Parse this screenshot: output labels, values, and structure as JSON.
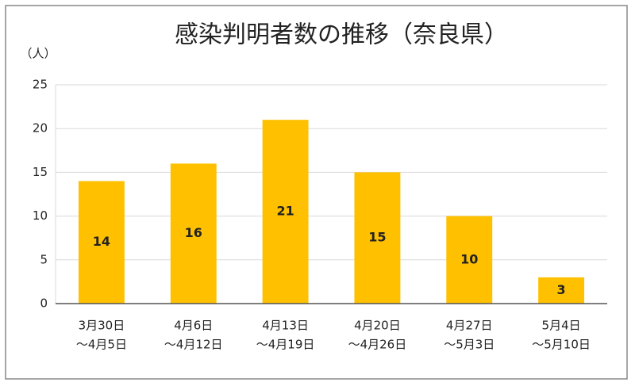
{
  "chart_data": {
    "type": "bar",
    "title": "感染判明者数の推移（奈良県）",
    "y_label": "（人）",
    "categories": [
      [
        "3月30日",
        "～4月5日"
      ],
      [
        "4月6日",
        "～4月12日"
      ],
      [
        "4月13日",
        "～4月19日"
      ],
      [
        "4月20日",
        "～4月26日"
      ],
      [
        "4月27日",
        "～5月3日"
      ],
      [
        "5月4日",
        "～5月10日"
      ]
    ],
    "values": [
      14,
      16,
      21,
      15,
      10,
      3
    ],
    "color": "#ffc000",
    "ylim": [
      0,
      25
    ],
    "yticks": [
      0,
      5,
      10,
      15,
      20,
      25
    ],
    "grid": true
  }
}
